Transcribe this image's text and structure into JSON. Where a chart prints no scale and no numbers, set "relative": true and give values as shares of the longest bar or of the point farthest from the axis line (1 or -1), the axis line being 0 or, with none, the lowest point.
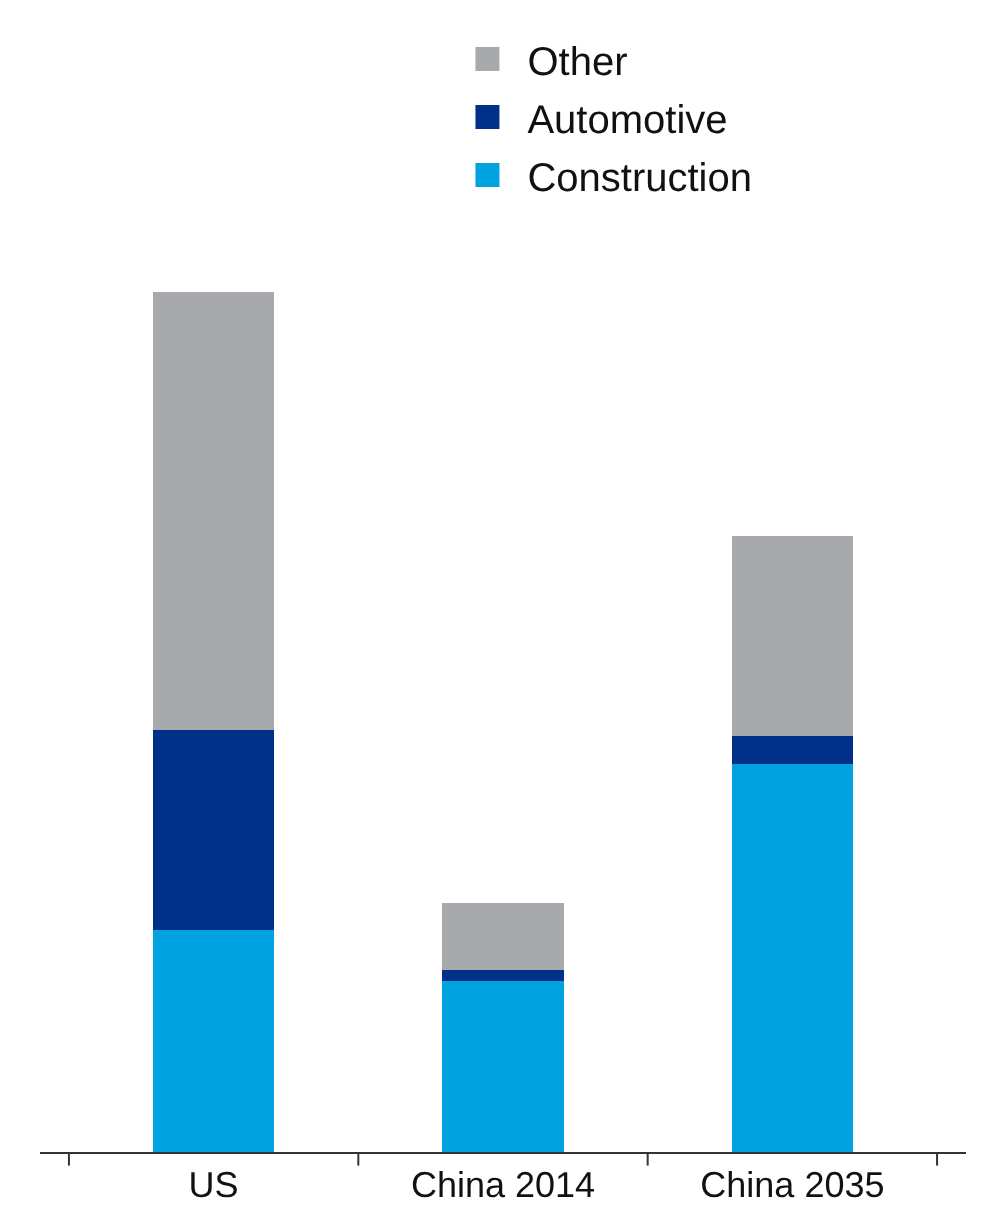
{
  "chart_data": {
    "type": "bar",
    "stacked": true,
    "relative": true,
    "legend": "top",
    "categories": [
      "US",
      "China 2014",
      "China 2035"
    ],
    "series": [
      {
        "name": "Construction",
        "color": "#00a3e0",
        "values": [
          0.258,
          0.199,
          0.451
        ]
      },
      {
        "name": "Automotive",
        "color": "#003087",
        "values": [
          0.232,
          0.013,
          0.033
        ]
      },
      {
        "name": "Other",
        "color": "#a7a9ac",
        "values": [
          0.51,
          0.077,
          0.232
        ]
      }
    ]
  }
}
